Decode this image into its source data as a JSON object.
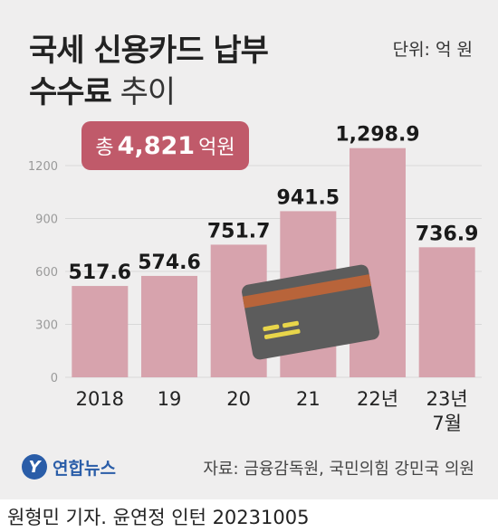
{
  "title": {
    "line1": "국세 신용카드 납부",
    "line2_bold": "수수료",
    "line2_light": "추이"
  },
  "unit": "단위: 억 원",
  "total": {
    "prefix": "총",
    "value": "4,821",
    "suffix": "억원"
  },
  "source": "자료: 금융감독원, 국민의힘 강민국 의원",
  "logo": {
    "mark": "Y",
    "name": "연합뉴스"
  },
  "credit": "원형민 기자. 윤연정 인턴 20231005",
  "icons": [
    "credit-card-icon"
  ],
  "colors": {
    "bar": "#d7a3ad",
    "badge": "#c05a6a",
    "background": "#efeeee",
    "grid": "#d8d8d8",
    "card_body": "#5c5c5c",
    "card_stripe": "#b8643a",
    "card_chip": "#e8d54a"
  },
  "chart_data": {
    "type": "bar",
    "categories": [
      "2018",
      "19",
      "20",
      "21",
      "22년",
      "23년\n7월"
    ],
    "values": [
      517.6,
      574.6,
      751.7,
      941.5,
      1298.9,
      736.9
    ],
    "value_labels": [
      "517.6",
      "574.6",
      "751.7",
      "941.5",
      "1,298.9",
      "736.9"
    ],
    "ylim": [
      0,
      1200
    ],
    "yticks": [
      0,
      300,
      600,
      900,
      1200
    ],
    "grid": true
  }
}
